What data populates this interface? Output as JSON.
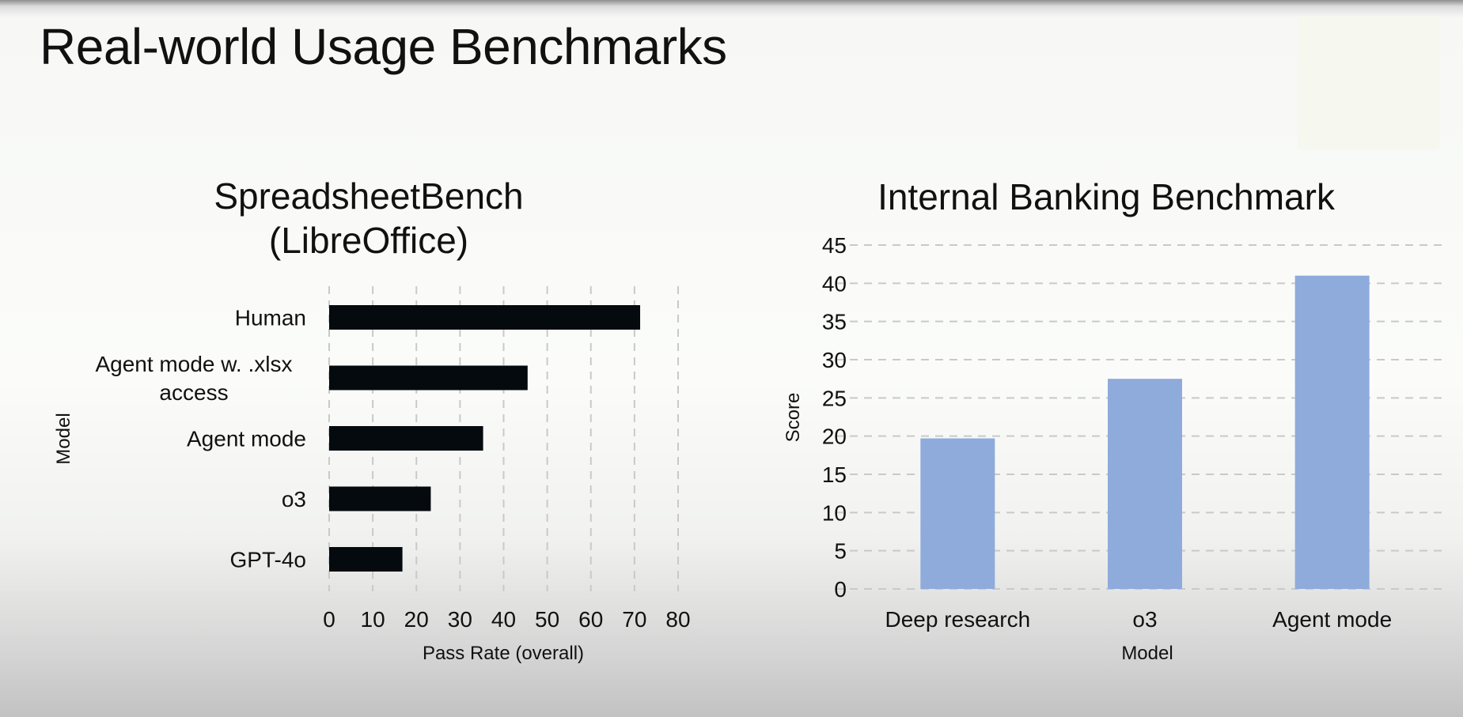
{
  "slide": {
    "title": "Real-world Usage Benchmarks",
    "logo_icon": "analytics-magnifier-icon"
  },
  "chart_data": [
    {
      "type": "bar",
      "orientation": "horizontal",
      "title": "SpreadsheetBench (LibreOffice)",
      "title_lines": [
        "SpreadsheetBench",
        "(LibreOffice)"
      ],
      "categories": [
        [
          "Human"
        ],
        [
          "Agent mode w. .xlsx",
          "access"
        ],
        [
          "Agent mode"
        ],
        [
          "o3"
        ],
        [
          "GPT-4o"
        ]
      ],
      "values": [
        71.3,
        45.5,
        35.3,
        23.3,
        16.8
      ],
      "xlabel": "Pass Rate (overall)",
      "ylabel": "Model",
      "xlim": [
        0,
        80
      ],
      "xticks": [
        "0",
        "10",
        "20",
        "30",
        "40",
        "50",
        "60",
        "70",
        "80"
      ],
      "grid": "vertical dashed",
      "bar_color": "#050a0f"
    },
    {
      "type": "bar",
      "orientation": "vertical",
      "title": "Internal Banking Benchmark",
      "categories": [
        "Deep research",
        "o3",
        "Agent mode"
      ],
      "values": [
        19.7,
        27.5,
        41.0
      ],
      "xlabel": "Model",
      "ylabel": "Score",
      "ylim": [
        0,
        45
      ],
      "yticks": [
        "0",
        "5",
        "10",
        "15",
        "20",
        "25",
        "30",
        "35",
        "40",
        "45"
      ],
      "grid": "horizontal dashed",
      "bar_color": "#8eabdb"
    }
  ]
}
